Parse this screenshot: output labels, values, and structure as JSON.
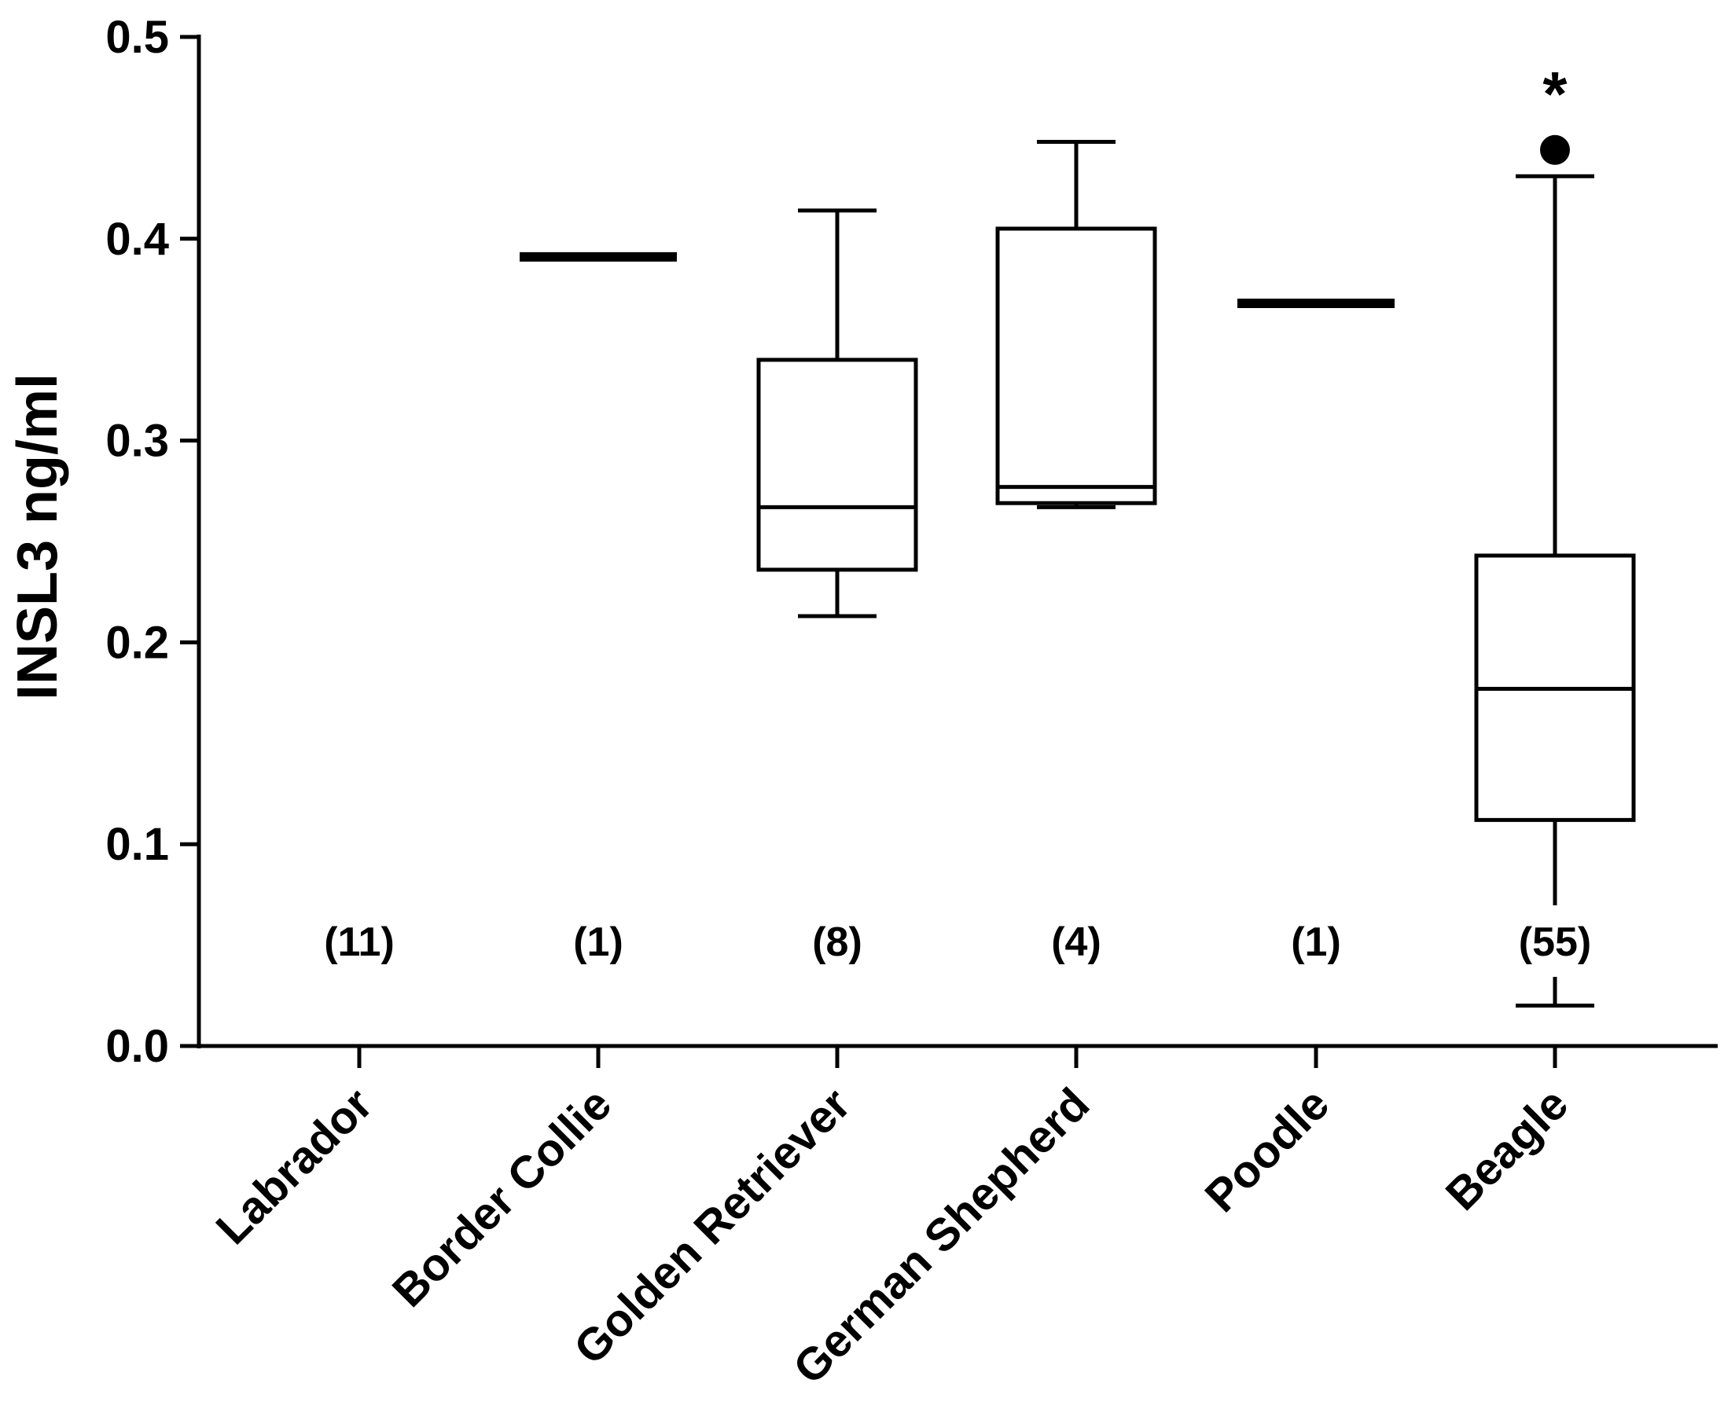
{
  "chart_data": {
    "type": "box",
    "title": "",
    "xlabel": "",
    "ylabel": "INSL3 ng/ml",
    "ylim": [
      0.0,
      0.5
    ],
    "yticks": [
      0.0,
      0.1,
      0.2,
      0.3,
      0.4,
      0.5
    ],
    "ytick_labels": [
      "0.0",
      "0.1",
      "0.2",
      "0.3",
      "0.4",
      "0.5"
    ],
    "categories": [
      "Labrador",
      "Border Collie",
      "Golden Retriever",
      "German Shepherd",
      "Poodle",
      "Beagle"
    ],
    "sample_sizes": [
      "(11)",
      "(1)",
      "(8)",
      "(4)",
      "(1)",
      "(55)"
    ],
    "boxes": [
      {
        "category": "Labrador",
        "n": 11,
        "single_value": null,
        "min": null,
        "q1": null,
        "median": null,
        "q3": null,
        "max": null,
        "outliers": [],
        "significance": ""
      },
      {
        "category": "Border Collie",
        "n": 1,
        "single_value": 0.391
      },
      {
        "category": "Golden Retriever",
        "n": 8,
        "min": 0.213,
        "q1": 0.236,
        "median": 0.267,
        "q3": 0.34,
        "max": 0.414,
        "outliers": [],
        "significance": ""
      },
      {
        "category": "German Shepherd",
        "n": 4,
        "min": 0.267,
        "q1": 0.269,
        "median": 0.277,
        "q3": 0.405,
        "max": 0.448,
        "outliers": [],
        "significance": ""
      },
      {
        "category": "Poodle",
        "n": 1,
        "single_value": 0.368
      },
      {
        "category": "Beagle",
        "n": 55,
        "min": 0.02,
        "q1": 0.112,
        "median": 0.177,
        "q3": 0.243,
        "max": 0.431,
        "outliers": [
          0.444
        ],
        "significance": "*"
      }
    ],
    "grid": false,
    "legend": "none"
  }
}
